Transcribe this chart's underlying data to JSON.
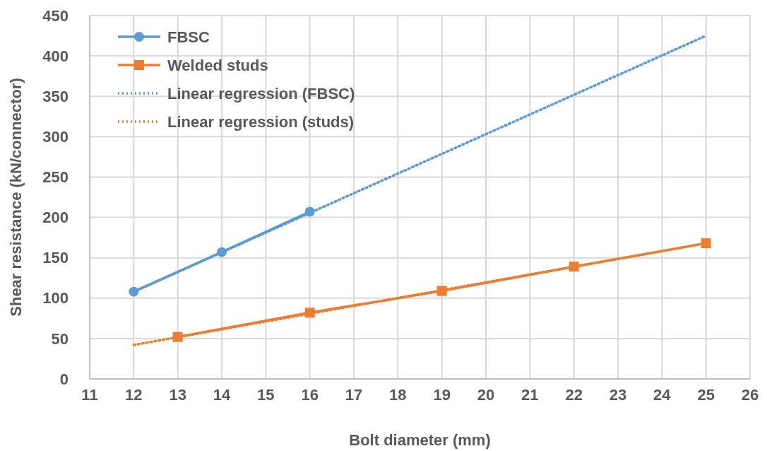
{
  "chart_data": {
    "type": "line",
    "xlabel": "Bolt diameter (mm)",
    "ylabel": "Shear resistance (kN/connector)",
    "xlim": [
      11,
      26
    ],
    "xticks": [
      11,
      12,
      13,
      14,
      15,
      16,
      17,
      18,
      19,
      20,
      21,
      22,
      23,
      24,
      25,
      26
    ],
    "ylim": [
      0,
      450
    ],
    "yticks": [
      0,
      50,
      100,
      150,
      200,
      250,
      300,
      350,
      400,
      450
    ],
    "grid": true,
    "legend": "top left",
    "series": [
      {
        "name": "FBSC",
        "color": "#5b9bd5",
        "x": [
          12,
          14,
          16
        ],
        "values": [
          108,
          157,
          207
        ],
        "marker": "circle",
        "line_style": "solid"
      },
      {
        "name": "Welded studs",
        "color": "#ed7d31",
        "x": [
          13,
          16,
          19,
          22,
          25
        ],
        "values": [
          52,
          82,
          109,
          139,
          168
        ],
        "marker": "square",
        "line_style": "solid"
      },
      {
        "name": "Linear regression (FBSC)",
        "color": "#5b9bd5",
        "x": [
          12,
          25
        ],
        "values": [
          108,
          425
        ],
        "marker": "none",
        "line_style": "dotted"
      },
      {
        "name": "Linear regression (studs)",
        "color": "#ed7d31",
        "x": [
          12,
          25
        ],
        "values": [
          42,
          168
        ],
        "marker": "none",
        "line_style": "dotted"
      }
    ]
  }
}
